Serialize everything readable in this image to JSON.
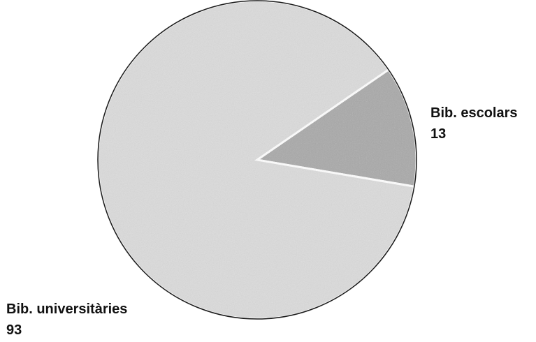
{
  "chart_data": {
    "type": "pie",
    "title": "",
    "slices": [
      {
        "label": "Bib. escolars",
        "value": 13,
        "color": "#a9a9a9"
      },
      {
        "label": "Bib. universitàries",
        "value": 93,
        "color": "#dcdcdc"
      }
    ],
    "legend": "none"
  }
}
